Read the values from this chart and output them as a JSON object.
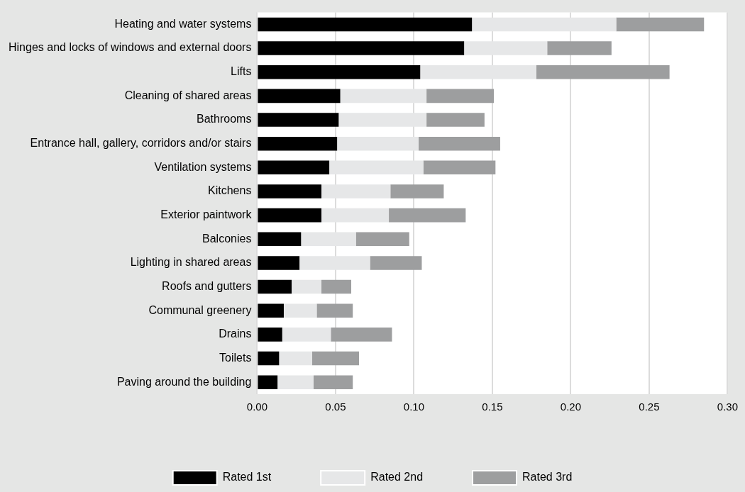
{
  "chart_data": {
    "type": "bar",
    "orientation": "horizontal",
    "stacked": true,
    "categories": [
      "Heating and water systems",
      "Hinges and locks of windows and external doors",
      "Lifts",
      "Cleaning of shared areas",
      "Bathrooms",
      "Entrance hall, gallery, corridors and/or stairs",
      "Ventilation systems",
      "Kitchens",
      "Exterior paintwork",
      "Balconies",
      "Lighting in shared areas",
      "Roofs and gutters",
      "Communal greenery",
      "Drains",
      "Toilets",
      "Paving around the building"
    ],
    "series": [
      {
        "name": "Rated 1st",
        "color": "#000000",
        "values": [
          0.137,
          0.132,
          0.104,
          0.053,
          0.052,
          0.051,
          0.046,
          0.041,
          0.041,
          0.028,
          0.027,
          0.022,
          0.017,
          0.016,
          0.014,
          0.013
        ]
      },
      {
        "name": "Rated 2nd",
        "color": "#e6e7e8",
        "values": [
          0.092,
          0.053,
          0.074,
          0.055,
          0.056,
          0.052,
          0.06,
          0.044,
          0.043,
          0.035,
          0.045,
          0.019,
          0.021,
          0.031,
          0.021,
          0.023
        ]
      },
      {
        "name": "Rated 3rd",
        "color": "#9d9e9f",
        "values": [
          0.056,
          0.041,
          0.085,
          0.043,
          0.037,
          0.052,
          0.046,
          0.034,
          0.049,
          0.034,
          0.033,
          0.019,
          0.023,
          0.039,
          0.03,
          0.025
        ]
      }
    ],
    "xlim": [
      0,
      0.3
    ],
    "xticks": [
      {
        "value": 0,
        "label": "0.00"
      },
      {
        "value": 0.05,
        "label": "0.05"
      },
      {
        "value": 0.1,
        "label": "0.10"
      },
      {
        "value": 0.15,
        "label": "0.15"
      },
      {
        "value": 0.2,
        "label": "0.20"
      },
      {
        "value": 0.25,
        "label": "0.25"
      },
      {
        "value": 0.3,
        "label": "0.30"
      }
    ],
    "grid": "x",
    "legend": "bottom"
  }
}
